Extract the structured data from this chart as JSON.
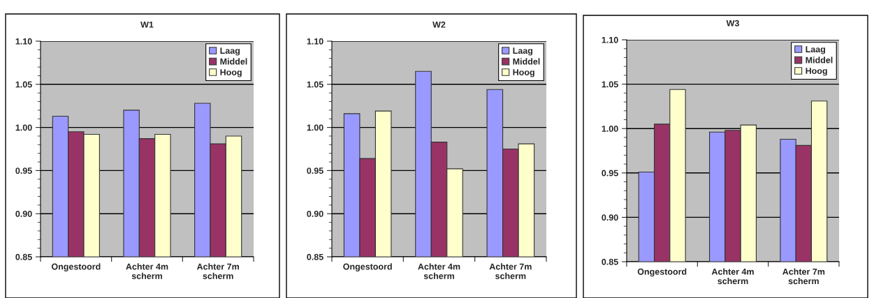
{
  "chart_data": [
    {
      "type": "bar",
      "title": "W1",
      "categories": [
        "Ongestoord",
        "Achter 4m\nscherm",
        "Achter 7m\nscherm"
      ],
      "ylim": [
        0.85,
        1.1
      ],
      "yticks": [
        {
          "value": 0.85,
          "label": "0.85"
        },
        {
          "value": 0.9,
          "label": "0.90"
        },
        {
          "value": 0.95,
          "label": "0.95"
        },
        {
          "value": 1.0,
          "label": "1.00"
        },
        {
          "value": 1.05,
          "label": "1.05"
        },
        {
          "value": 1.1,
          "label": "1.10"
        }
      ],
      "grid": "y",
      "legend": "top right",
      "series": [
        {
          "name": "Laag",
          "color": "#9999ff",
          "values": [
            1.013,
            1.02,
            1.028
          ]
        },
        {
          "name": "Middel",
          "color": "#993366",
          "values": [
            0.995,
            0.987,
            0.981
          ]
        },
        {
          "name": "Hoog",
          "color": "#ffffcc",
          "values": [
            0.992,
            0.992,
            0.99
          ]
        }
      ]
    },
    {
      "type": "bar",
      "title": "W2",
      "categories": [
        "Ongestoord",
        "Achter 4m\nscherm",
        "Achter 7m\nscherm"
      ],
      "ylim": [
        0.85,
        1.1
      ],
      "yticks": [
        {
          "value": 0.85,
          "label": "0.85"
        },
        {
          "value": 0.9,
          "label": "0.90"
        },
        {
          "value": 0.95,
          "label": "0.95"
        },
        {
          "value": 1.0,
          "label": "1.00"
        },
        {
          "value": 1.05,
          "label": "1.05"
        },
        {
          "value": 1.1,
          "label": "1.10"
        }
      ],
      "grid": "y",
      "legend": "top right",
      "series": [
        {
          "name": "Laag",
          "color": "#9999ff",
          "values": [
            1.016,
            1.065,
            1.044
          ]
        },
        {
          "name": "Middel",
          "color": "#993366",
          "values": [
            0.964,
            0.983,
            0.975
          ]
        },
        {
          "name": "Hoog",
          "color": "#ffffcc",
          "values": [
            1.019,
            0.952,
            0.981
          ]
        }
      ]
    },
    {
      "type": "bar",
      "title": "W3",
      "categories": [
        "Ongestoord",
        "Achter 4m\nscherm",
        "Achter 7m\nscherm"
      ],
      "ylim": [
        0.85,
        1.1
      ],
      "yticks": [
        {
          "value": 0.85,
          "label": "0.85"
        },
        {
          "value": 0.9,
          "label": "0.90"
        },
        {
          "value": 0.95,
          "label": "0.95"
        },
        {
          "value": 1.0,
          "label": "1.00"
        },
        {
          "value": 1.05,
          "label": "1.05"
        },
        {
          "value": 1.1,
          "label": "1.10"
        }
      ],
      "grid": "y",
      "legend": "top right",
      "series": [
        {
          "name": "Laag",
          "color": "#9999ff",
          "values": [
            0.951,
            0.996,
            0.988
          ]
        },
        {
          "name": "Middel",
          "color": "#993366",
          "values": [
            1.005,
            0.998,
            0.981
          ]
        },
        {
          "name": "Hoog",
          "color": "#ffffcc",
          "values": [
            1.044,
            1.004,
            1.031
          ]
        }
      ]
    }
  ]
}
